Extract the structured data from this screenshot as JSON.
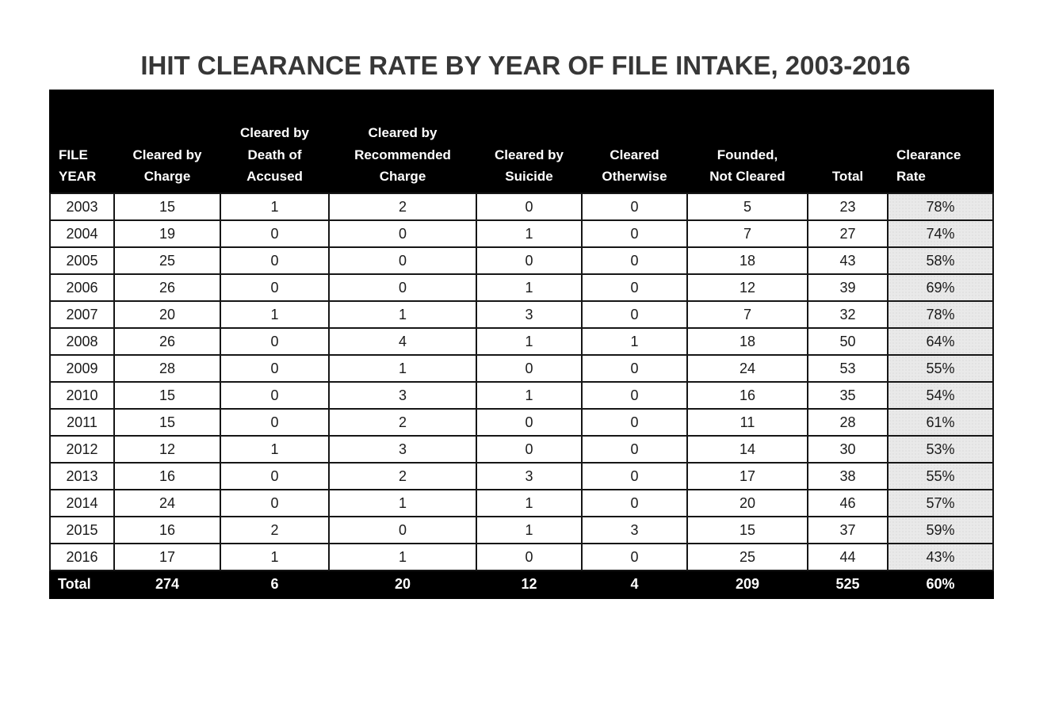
{
  "title": "IHIT CLEARANCE RATE BY YEAR OF FILE INTAKE, 2003-2016",
  "colors": {
    "header_bg": "#000000",
    "header_text": "#ffffff",
    "body_bg": "#ffffff",
    "rate_column_bg": "#e9e9e9",
    "border": "#161616",
    "title_text": "#373737"
  },
  "chart_data": {
    "type": "table",
    "title": "IHIT CLEARANCE RATE BY YEAR OF FILE INTAKE, 2003-2016",
    "columns": [
      "FILE\nYEAR",
      "Cleared by\nCharge",
      "Cleared by\nDeath of\nAccused",
      "Cleared by\nRecommended\nCharge",
      "Cleared by\nSuicide",
      "Cleared\nOtherwise",
      "Founded,\nNot Cleared",
      "Total",
      "Clearance\nRate"
    ],
    "rows": [
      [
        "2003",
        "15",
        "1",
        "2",
        "0",
        "0",
        "5",
        "23",
        "78%"
      ],
      [
        "2004",
        "19",
        "0",
        "0",
        "1",
        "0",
        "7",
        "27",
        "74%"
      ],
      [
        "2005",
        "25",
        "0",
        "0",
        "0",
        "0",
        "18",
        "43",
        "58%"
      ],
      [
        "2006",
        "26",
        "0",
        "0",
        "1",
        "0",
        "12",
        "39",
        "69%"
      ],
      [
        "2007",
        "20",
        "1",
        "1",
        "3",
        "0",
        "7",
        "32",
        "78%"
      ],
      [
        "2008",
        "26",
        "0",
        "4",
        "1",
        "1",
        "18",
        "50",
        "64%"
      ],
      [
        "2009",
        "28",
        "0",
        "1",
        "0",
        "0",
        "24",
        "53",
        "55%"
      ],
      [
        "2010",
        "15",
        "0",
        "3",
        "1",
        "0",
        "16",
        "35",
        "54%"
      ],
      [
        "2011",
        "15",
        "0",
        "2",
        "0",
        "0",
        "11",
        "28",
        "61%"
      ],
      [
        "2012",
        "12",
        "1",
        "3",
        "0",
        "0",
        "14",
        "30",
        "53%"
      ],
      [
        "2013",
        "16",
        "0",
        "2",
        "3",
        "0",
        "17",
        "38",
        "55%"
      ],
      [
        "2014",
        "24",
        "0",
        "1",
        "1",
        "0",
        "20",
        "46",
        "57%"
      ],
      [
        "2015",
        "16",
        "2",
        "0",
        "1",
        "3",
        "15",
        "37",
        "59%"
      ],
      [
        "2016",
        "17",
        "1",
        "1",
        "0",
        "0",
        "25",
        "44",
        "43%"
      ]
    ],
    "total_row": [
      "Total",
      "274",
      "6",
      "20",
      "12",
      "4",
      "209",
      "525",
      "60%"
    ]
  }
}
